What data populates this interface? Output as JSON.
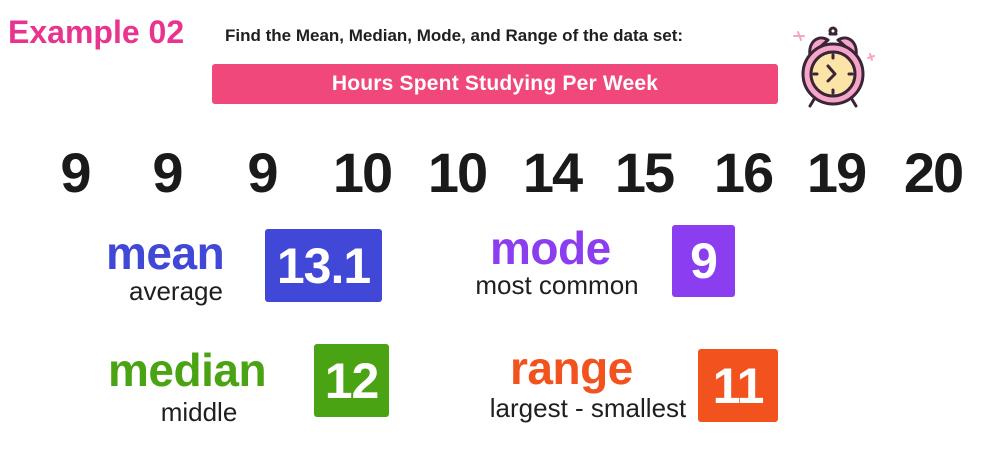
{
  "header": {
    "example_label": "Example 02",
    "instructions": "Find the Mean, Median, Mode, and Range of the data set:",
    "banner_title": "Hours Spent Studying Per Week"
  },
  "data_set": [
    "9",
    "9",
    "9",
    "10",
    "10",
    "14",
    "15",
    "16",
    "19",
    "20"
  ],
  "stats": {
    "mean": {
      "word": "mean",
      "description": "average",
      "value": "13.1"
    },
    "mode": {
      "word": "mode",
      "description": "most common",
      "value": "9"
    },
    "median": {
      "word": "median",
      "description": "middle",
      "value": "12"
    },
    "range": {
      "word": "range",
      "description": "largest - smallest",
      "value": "11"
    }
  },
  "colors": {
    "example_pink": "#e8338f",
    "banner_pink": "#f0487a",
    "mean_blue": "#4148d8",
    "mode_purple": "#8b3df0",
    "median_green": "#4aa312",
    "range_orange": "#f2521e",
    "clock_pink": "#f5a6c8",
    "clock_outline": "#3a2436",
    "clock_face": "#fce4a8"
  },
  "icons": {
    "clock": "alarm-clock-icon"
  }
}
